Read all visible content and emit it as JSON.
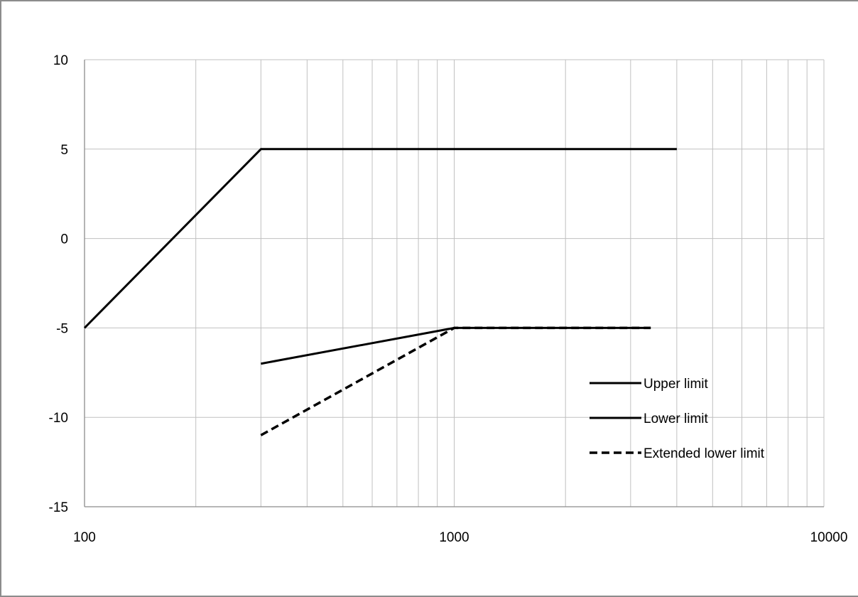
{
  "chart_data": {
    "type": "line",
    "title": "",
    "xlabel": "",
    "ylabel": "",
    "x_scale": "log",
    "xlim": [
      100,
      10000
    ],
    "ylim": [
      -15,
      10
    ],
    "x_ticks": [
      100,
      1000,
      10000
    ],
    "x_tick_labels": [
      "100",
      "1000",
      "10000"
    ],
    "y_ticks": [
      10,
      5,
      0,
      -5,
      -10,
      -15
    ],
    "y_tick_labels": [
      "10",
      "5",
      "0",
      "-5",
      "-10",
      "-15"
    ],
    "grid": true,
    "legend_position": "lower-right",
    "series": [
      {
        "name": "Upper limit",
        "style": "solid",
        "color": "#000000",
        "points": [
          [
            100,
            -5
          ],
          [
            300,
            5
          ],
          [
            4000,
            5
          ]
        ]
      },
      {
        "name": "Lower limit",
        "style": "solid",
        "color": "#000000",
        "points": [
          [
            300,
            -7
          ],
          [
            1000,
            -5
          ],
          [
            3400,
            -5
          ]
        ]
      },
      {
        "name": "Extended lower limit",
        "style": "dashed",
        "color": "#000000",
        "points": [
          [
            300,
            -11
          ],
          [
            1000,
            -5
          ],
          [
            3400,
            -5
          ]
        ]
      }
    ]
  }
}
